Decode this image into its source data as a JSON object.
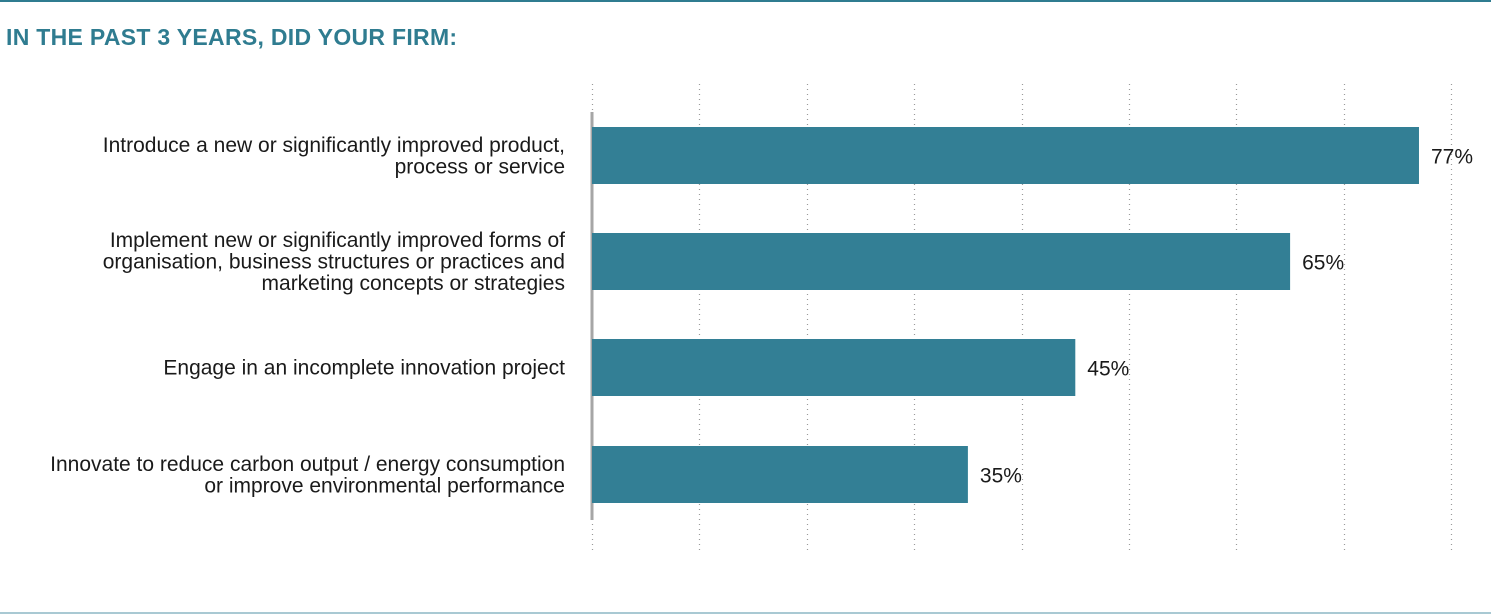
{
  "title": "IN THE PAST 3 YEARS, DID YOUR FIRM:",
  "colors": {
    "bar": "#337f95",
    "accent": "#2f7c90",
    "grid": "#9a9a9a",
    "axis": "#a6a6a6",
    "text": "#1a1a1a"
  },
  "chart_data": {
    "type": "bar",
    "orientation": "horizontal",
    "title": "IN THE PAST 3 YEARS, DID YOUR FIRM:",
    "categories": [
      [
        "Introduce a new or significantly improved product,",
        "process or service"
      ],
      [
        "Implement new or significantly improved forms of",
        "organisation, business structures or practices and",
        "marketing concepts or strategies"
      ],
      [
        "Engage in an incomplete innovation project"
      ],
      [
        "Innovate to reduce carbon output / energy consumption",
        "or improve environmental performance"
      ]
    ],
    "values": [
      77,
      65,
      45,
      35
    ],
    "value_labels": [
      "77%",
      "65%",
      "45%",
      "35%"
    ],
    "xlim": [
      0,
      80
    ],
    "grid": "vertical dotted",
    "legend": "none"
  }
}
